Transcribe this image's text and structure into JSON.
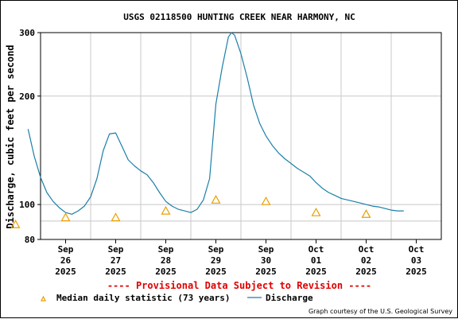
{
  "chart_data": {
    "type": "line",
    "title": "USGS 02118500 HUNTING CREEK NEAR HARMONY, NC",
    "ylabel": "Discharge, cubic feet per second",
    "xlabel": "",
    "ylim": [
      80,
      300
    ],
    "y_scale": "log",
    "yticks": [
      80,
      100,
      200,
      300
    ],
    "grid": true,
    "xticks": [
      {
        "mon": "Sep",
        "day": "26",
        "year": "2025",
        "date": "2025-09-26"
      },
      {
        "mon": "Sep",
        "day": "27",
        "year": "2025",
        "date": "2025-09-27"
      },
      {
        "mon": "Sep",
        "day": "28",
        "year": "2025",
        "date": "2025-09-28"
      },
      {
        "mon": "Sep",
        "day": "29",
        "year": "2025",
        "date": "2025-09-29"
      },
      {
        "mon": "Sep",
        "day": "30",
        "year": "2025",
        "date": "2025-09-30"
      },
      {
        "mon": "Oct",
        "day": "01",
        "year": "2025",
        "date": "2025-10-01"
      },
      {
        "mon": "Oct",
        "day": "02",
        "year": "2025",
        "date": "2025-10-02"
      },
      {
        "mon": "Oct",
        "day": "03",
        "year": "2025",
        "date": "2025-10-03"
      }
    ],
    "series": [
      {
        "name": "Discharge",
        "color": "#1a7fa8",
        "points": [
          [
            "2025-09-25T18:00",
            162
          ],
          [
            "2025-09-25T21:00",
            136
          ],
          [
            "2025-09-26T00:00",
            119
          ],
          [
            "2025-09-26T03:00",
            108
          ],
          [
            "2025-09-26T06:00",
            102
          ],
          [
            "2025-09-26T09:00",
            98
          ],
          [
            "2025-09-26T12:00",
            95
          ],
          [
            "2025-09-26T15:00",
            94
          ],
          [
            "2025-09-26T18:00",
            96
          ],
          [
            "2025-09-26T21:00",
            99
          ],
          [
            "2025-09-27T00:00",
            105
          ],
          [
            "2025-09-27T03:00",
            118
          ],
          [
            "2025-09-27T06:00",
            141
          ],
          [
            "2025-09-27T09:00",
            157
          ],
          [
            "2025-09-27T12:00",
            158
          ],
          [
            "2025-09-27T15:00",
            145
          ],
          [
            "2025-09-27T18:00",
            133
          ],
          [
            "2025-09-27T21:00",
            128
          ],
          [
            "2025-09-28T00:00",
            124
          ],
          [
            "2025-09-28T03:00",
            121
          ],
          [
            "2025-09-28T06:00",
            115
          ],
          [
            "2025-09-28T09:00",
            108
          ],
          [
            "2025-09-28T12:00",
            102
          ],
          [
            "2025-09-28T15:00",
            99
          ],
          [
            "2025-09-28T18:00",
            97
          ],
          [
            "2025-09-28T21:00",
            96
          ],
          [
            "2025-09-29T00:00",
            95
          ],
          [
            "2025-09-29T03:00",
            97
          ],
          [
            "2025-09-29T06:00",
            103
          ],
          [
            "2025-09-29T09:00",
            118
          ],
          [
            "2025-09-29T12:00",
            190
          ],
          [
            "2025-09-29T15:00",
            240
          ],
          [
            "2025-09-29T18:00",
            292
          ],
          [
            "2025-09-29T19:30",
            300
          ],
          [
            "2025-09-29T21:00",
            295
          ],
          [
            "2025-09-30T00:00",
            262
          ],
          [
            "2025-09-30T03:00",
            225
          ],
          [
            "2025-09-30T06:00",
            189
          ],
          [
            "2025-09-30T09:00",
            168
          ],
          [
            "2025-09-30T12:00",
            155
          ],
          [
            "2025-09-30T15:00",
            146
          ],
          [
            "2025-09-30T18:00",
            139
          ],
          [
            "2025-09-30T21:00",
            134
          ],
          [
            "2025-10-01T00:00",
            130
          ],
          [
            "2025-10-01T03:00",
            126
          ],
          [
            "2025-10-01T06:00",
            123
          ],
          [
            "2025-10-01T09:00",
            120
          ],
          [
            "2025-10-01T12:00",
            115
          ],
          [
            "2025-10-01T15:00",
            111
          ],
          [
            "2025-10-01T18:00",
            108
          ],
          [
            "2025-10-01T21:00",
            106
          ],
          [
            "2025-10-02T00:00",
            104
          ],
          [
            "2025-10-02T03:00",
            103
          ],
          [
            "2025-10-02T06:00",
            102
          ],
          [
            "2025-10-02T09:00",
            101
          ],
          [
            "2025-10-02T12:00",
            100
          ],
          [
            "2025-10-02T15:00",
            99
          ],
          [
            "2025-10-02T18:00",
            98.5
          ],
          [
            "2025-10-02T21:00",
            97.5
          ],
          [
            "2025-10-03T00:00",
            96.5
          ],
          [
            "2025-10-03T03:00",
            96
          ],
          [
            "2025-10-03T06:00",
            96
          ]
        ]
      },
      {
        "name": "Median daily statistic (73 years)",
        "color": "#e8a000",
        "marker": "triangle",
        "points": [
          [
            "2025-09-25T12:00",
            88
          ],
          [
            "2025-09-26T12:00",
            92
          ],
          [
            "2025-09-27T12:00",
            92
          ],
          [
            "2025-09-28T12:00",
            96
          ],
          [
            "2025-09-29T12:00",
            103
          ],
          [
            "2025-09-30T12:00",
            102
          ],
          [
            "2025-10-01T12:00",
            95
          ],
          [
            "2025-10-02T12:00",
            94
          ]
        ]
      }
    ]
  },
  "provisional_text": "---- Provisional Data Subject to Revision ----",
  "credit": "Graph courtesy of the U.S. Geological Survey"
}
